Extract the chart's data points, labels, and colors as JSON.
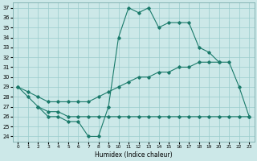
{
  "xlabel": "Humidex (Indice chaleur)",
  "bg_color": "#cce8e8",
  "line_color": "#1a7a6a",
  "grid_color": "#99cccc",
  "xlim": [
    -0.5,
    23.5
  ],
  "ylim": [
    23.5,
    37.5
  ],
  "xticks": [
    0,
    1,
    2,
    3,
    4,
    5,
    6,
    7,
    8,
    9,
    10,
    11,
    12,
    13,
    14,
    15,
    16,
    17,
    18,
    19,
    20,
    21,
    22,
    23
  ],
  "yticks": [
    24,
    25,
    26,
    27,
    28,
    29,
    30,
    31,
    32,
    33,
    34,
    35,
    36,
    37
  ],
  "series": [
    {
      "x": [
        0,
        1,
        2,
        3,
        4,
        5,
        6,
        7,
        8,
        9,
        10,
        11,
        12,
        13,
        14,
        15,
        16,
        17,
        18,
        19,
        20
      ],
      "y": [
        29,
        28,
        27,
        26,
        26,
        25.5,
        25.5,
        24,
        24,
        27,
        34,
        37,
        36.5,
        37,
        35,
        35.5,
        35.5,
        35.5,
        33,
        32.5,
        31.5
      ]
    },
    {
      "x": [
        2,
        3,
        4,
        5,
        6,
        7,
        8,
        9,
        10,
        11,
        12,
        13,
        14,
        15,
        16,
        17,
        18,
        19,
        20,
        21,
        22,
        23
      ],
      "y": [
        27,
        26.5,
        26.5,
        26,
        26,
        26,
        26,
        26,
        26,
        26,
        26,
        26,
        26,
        26,
        26,
        26,
        26,
        26,
        26,
        26,
        26,
        26
      ]
    },
    {
      "x": [
        0,
        1,
        2,
        3,
        4,
        5,
        6,
        7,
        8,
        9,
        10,
        11,
        12,
        13,
        14,
        15,
        16,
        17,
        18,
        19,
        20,
        21,
        22,
        23
      ],
      "y": [
        29,
        28.5,
        28,
        27.5,
        27.5,
        27.5,
        27.5,
        27.5,
        28,
        28.5,
        29,
        29.5,
        30,
        30,
        30.5,
        30.5,
        31,
        31,
        31.5,
        31.5,
        31.5,
        31.5,
        29,
        26
      ]
    }
  ]
}
